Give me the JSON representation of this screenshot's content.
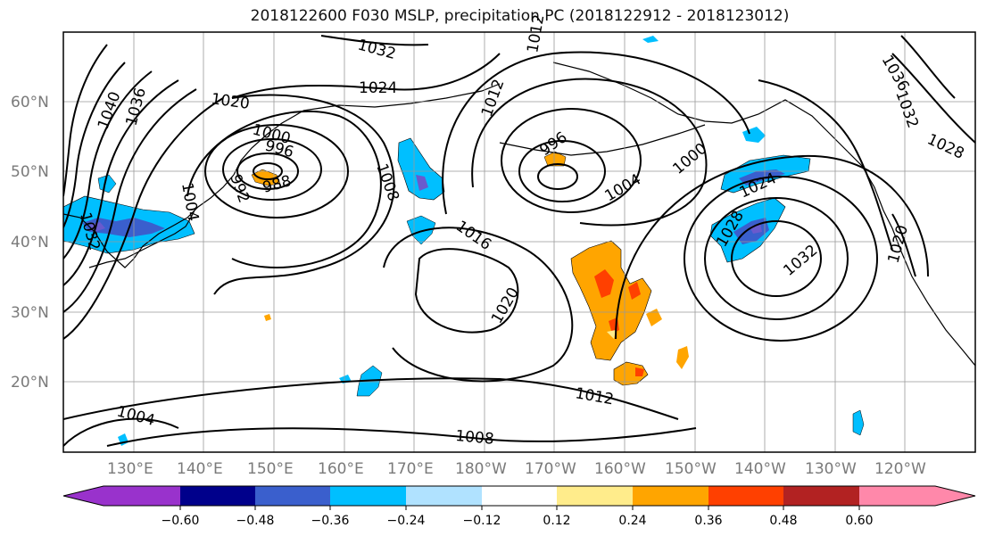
{
  "title": "2018122600 F030 MSLP, precipitation PC (2018122912 - 2018123012)",
  "lat_labels": [
    "60°N",
    "50°N",
    "40°N",
    "30°N",
    "20°N"
  ],
  "lon_labels": [
    "130°E",
    "140°E",
    "150°E",
    "160°E",
    "170°E",
    "180°W",
    "170°W",
    "160°W",
    "150°W",
    "140°W",
    "130°W",
    "120°W"
  ],
  "isobar_labels": [
    "1032",
    "1024",
    "1020",
    "1040",
    "1036",
    "1000",
    "996",
    "992",
    "988",
    "1004",
    "1032",
    "1008",
    "1012",
    "996",
    "1012",
    "1016",
    "1020",
    "1004",
    "1000",
    "1024",
    "1028",
    "1032",
    "1036",
    "1032",
    "1028",
    "1020",
    "1012",
    "1008",
    "1004"
  ],
  "colorbar": {
    "ticks": [
      "−0.60",
      "−0.48",
      "−0.36",
      "−0.24",
      "−0.12",
      "0.12",
      "0.24",
      "0.36",
      "0.48",
      "0.60"
    ],
    "colors": [
      "#9932cc",
      "#00008b",
      "#3a5fcd",
      "#00bfff",
      "#b0e2ff",
      "#ffffff",
      "#ffec8b",
      "#ffa500",
      "#ff4000",
      "#b22222",
      "#ff88aa"
    ]
  },
  "colors": {
    "neg_light": "#b0e2ff",
    "neg_mid": "#00bfff",
    "neg_dark": "#3a5fcd",
    "neg_purple": "#6a5acd",
    "pos_light": "#ffec8b",
    "pos_mid": "#ffa500",
    "pos_dark": "#ff4000"
  }
}
